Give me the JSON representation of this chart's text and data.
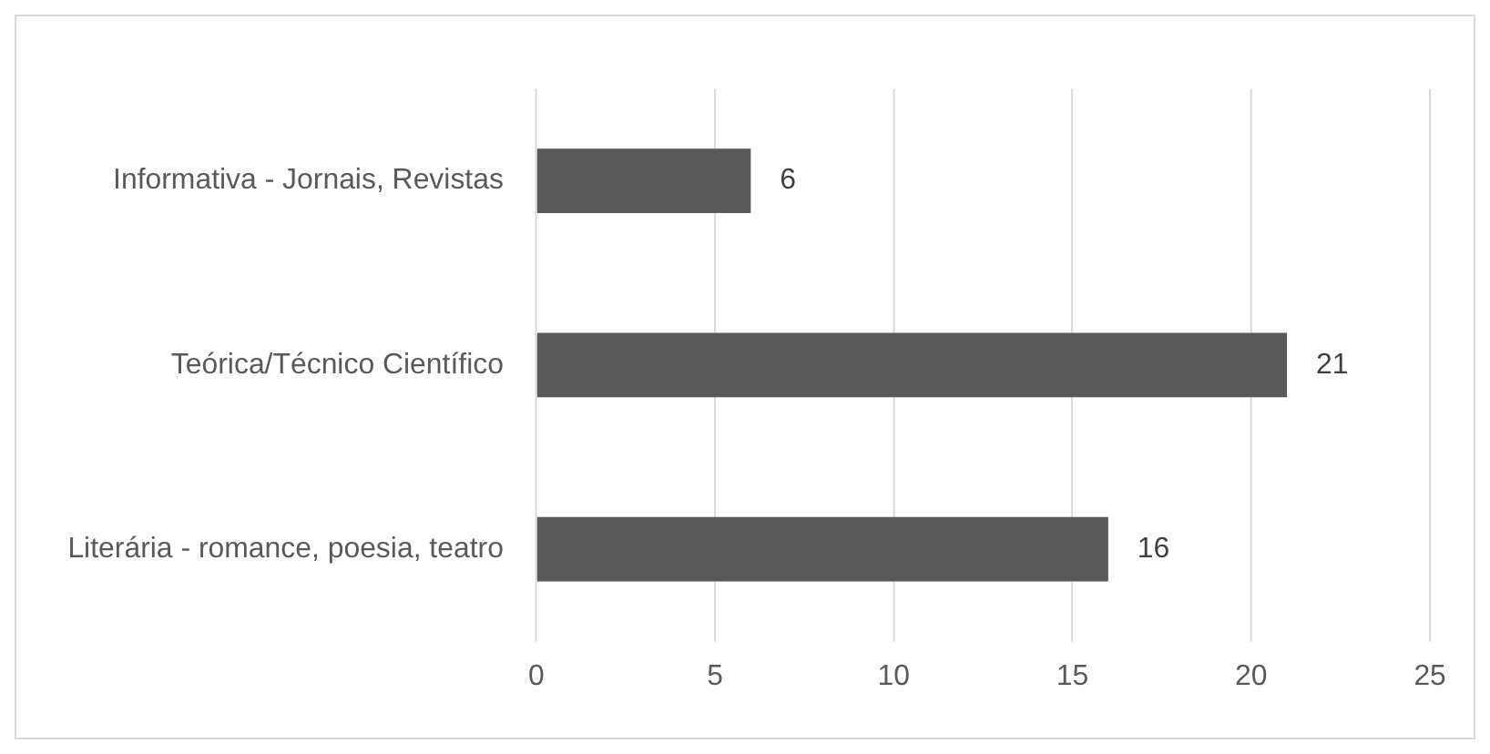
{
  "chart_data": {
    "type": "bar",
    "orientation": "horizontal",
    "categories": [
      "Informativa - Jornais, Revistas",
      "Teórica/Técnico Científico",
      "Literária - romance, poesia, teatro"
    ],
    "values": [
      6,
      21,
      16
    ],
    "color": "#595959",
    "xlim": [
      0,
      25
    ],
    "xticks": [
      0,
      5,
      10,
      15,
      20,
      25
    ],
    "grid": "x",
    "data_labels": true
  }
}
